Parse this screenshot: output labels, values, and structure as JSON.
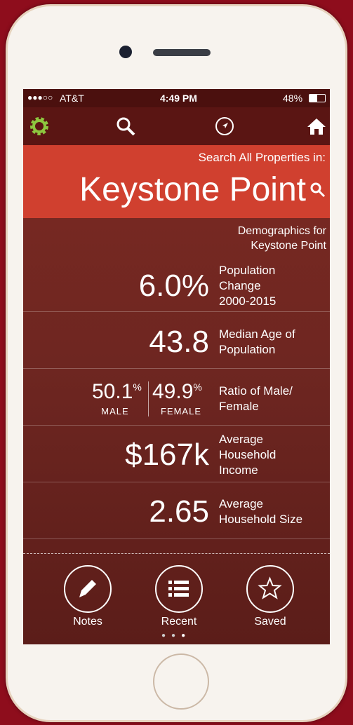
{
  "status_bar": {
    "carrier": "AT&T",
    "time": "4:49 PM",
    "battery": "48%"
  },
  "search_header": {
    "prompt": "Search All Properties in:",
    "location": "Keystone Point"
  },
  "demographics": {
    "title_lines": [
      "Demographics for",
      "Keystone Point"
    ],
    "stats": [
      {
        "value": "6.0%",
        "label_lines": [
          "Population",
          "Change",
          "2000-2015"
        ]
      },
      {
        "value": "43.8",
        "label_lines": [
          "Median Age of",
          "Population"
        ]
      },
      {
        "value": "$167k",
        "label_lines": [
          "Average",
          "Household",
          "Income"
        ]
      },
      {
        "value": "2.65",
        "label_lines": [
          "Average",
          "Household Size"
        ]
      }
    ],
    "ratio": {
      "male": {
        "value": "50.1",
        "unit": "%",
        "label": "MALE"
      },
      "female": {
        "value": "49.9",
        "unit": "%",
        "label": "FEMALE"
      },
      "label_lines": [
        "Ratio of Male/",
        "Female"
      ]
    }
  },
  "toolbar": [
    {
      "label": "Notes"
    },
    {
      "label": "Recent"
    },
    {
      "label": "Saved"
    }
  ]
}
